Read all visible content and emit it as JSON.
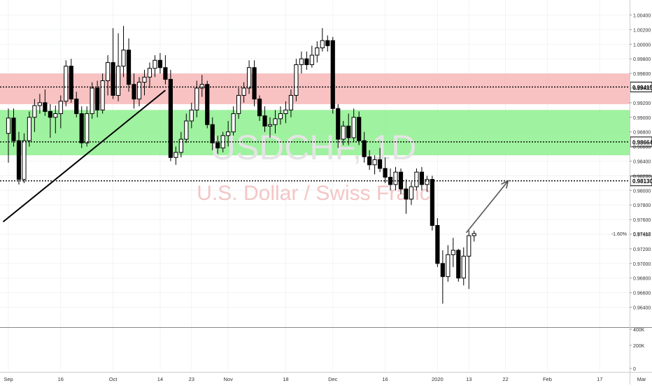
{
  "chart_data": {
    "type": "candlestick",
    "symbol": "USDCHF, 1D",
    "description": "U.S. Dollar / Swiss Franc",
    "y_axis": {
      "min": 0.963,
      "max": 1.005,
      "ticks": [
        "1.00400",
        "1.00200",
        "1.00000",
        "0.99800",
        "0.99600",
        "0.99400",
        "0.99200",
        "0.99000",
        "0.98800",
        "0.98600",
        "0.98400",
        "0.98200",
        "0.98000",
        "0.97800",
        "0.97600",
        "0.97400",
        "0.97200",
        "0.97000",
        "0.96800",
        "0.96600",
        "0.96400"
      ]
    },
    "x_axis": {
      "ticks": [
        {
          "label": "Sep",
          "bar": 0
        },
        {
          "label": "16",
          "bar": 10
        },
        {
          "label": "Oct",
          "bar": 20
        },
        {
          "label": "14",
          "bar": 29
        },
        {
          "label": "23",
          "bar": 35
        },
        {
          "label": "Nov",
          "bar": 42
        },
        {
          "label": "18",
          "bar": 53
        },
        {
          "label": "Dec",
          "bar": 62
        },
        {
          "label": "16",
          "bar": 72
        },
        {
          "label": "2020",
          "bar": 82
        },
        {
          "label": "13",
          "bar": 88
        },
        {
          "label": "22",
          "bar": 95
        },
        {
          "label": "Feb",
          "bar": 103
        },
        {
          "label": "17",
          "bar": 113
        },
        {
          "label": "Mar",
          "bar": 121
        }
      ]
    },
    "volume_axis": {
      "ticks": [
        "400K",
        "200K",
        "0"
      ]
    },
    "zones": [
      {
        "name": "resistance",
        "from": 0.9918,
        "to": 0.996,
        "color": "#f7b7b7"
      },
      {
        "name": "support",
        "from": 0.9848,
        "to": 0.991,
        "color": "#8ef08e"
      }
    ],
    "levels": [
      {
        "value": 0.99415,
        "label": "0.99415"
      },
      {
        "value": 0.98664,
        "label": "0.98664"
      },
      {
        "value": 0.9813,
        "label": "0.98130"
      }
    ],
    "current_price": {
      "value": 0.97412,
      "label": "0.97412",
      "change": "-1.60%"
    },
    "trendline": {
      "from": {
        "bar": -1,
        "price": 0.9757
      },
      "to": {
        "bar": 30,
        "price": 0.9937
      }
    },
    "projection_arrow": {
      "from": {
        "bar": 87.5,
        "price": 0.9742
      },
      "to": {
        "bar": 95.5,
        "price": 0.9813
      }
    },
    "candles": [
      {
        "o": 0.9878,
        "h": 0.9912,
        "l": 0.9838,
        "c": 0.9899
      },
      {
        "o": 0.9899,
        "h": 0.9912,
        "l": 0.986,
        "c": 0.9868
      },
      {
        "o": 0.9868,
        "h": 0.988,
        "l": 0.9808,
        "c": 0.9815
      },
      {
        "o": 0.9815,
        "h": 0.9878,
        "l": 0.981,
        "c": 0.9868
      },
      {
        "o": 0.9868,
        "h": 0.9908,
        "l": 0.986,
        "c": 0.99
      },
      {
        "o": 0.99,
        "h": 0.9925,
        "l": 0.988,
        "c": 0.9916
      },
      {
        "o": 0.9916,
        "h": 0.9932,
        "l": 0.9905,
        "c": 0.992
      },
      {
        "o": 0.992,
        "h": 0.9938,
        "l": 0.9902,
        "c": 0.9908
      },
      {
        "o": 0.9908,
        "h": 0.9918,
        "l": 0.9872,
        "c": 0.99
      },
      {
        "o": 0.99,
        "h": 0.9916,
        "l": 0.9878,
        "c": 0.9905
      },
      {
        "o": 0.9905,
        "h": 0.993,
        "l": 0.9885,
        "c": 0.9922
      },
      {
        "o": 0.9922,
        "h": 0.9978,
        "l": 0.9915,
        "c": 0.997
      },
      {
        "o": 0.997,
        "h": 0.998,
        "l": 0.992,
        "c": 0.9925
      },
      {
        "o": 0.9925,
        "h": 0.9935,
        "l": 0.99,
        "c": 0.9905
      },
      {
        "o": 0.9905,
        "h": 0.9915,
        "l": 0.9858,
        "c": 0.9865
      },
      {
        "o": 0.9865,
        "h": 0.9915,
        "l": 0.986,
        "c": 0.9905
      },
      {
        "o": 0.9905,
        "h": 0.9948,
        "l": 0.9898,
        "c": 0.994
      },
      {
        "o": 0.994,
        "h": 0.995,
        "l": 0.99,
        "c": 0.991
      },
      {
        "o": 0.991,
        "h": 0.996,
        "l": 0.9905,
        "c": 0.995
      },
      {
        "o": 0.995,
        "h": 0.9985,
        "l": 0.993,
        "c": 0.9975
      },
      {
        "o": 0.9975,
        "h": 1.0022,
        "l": 0.9925,
        "c": 0.993
      },
      {
        "o": 0.993,
        "h": 1.0015,
        "l": 0.9922,
        "c": 0.997
      },
      {
        "o": 0.997,
        "h": 1.0025,
        "l": 0.9955,
        "c": 0.9992
      },
      {
        "o": 0.9992,
        "h": 1.0008,
        "l": 0.9935,
        "c": 0.9945
      },
      {
        "o": 0.9945,
        "h": 0.996,
        "l": 0.9912,
        "c": 0.9925
      },
      {
        "o": 0.9925,
        "h": 0.9955,
        "l": 0.9915,
        "c": 0.9948
      },
      {
        "o": 0.9948,
        "h": 0.9965,
        "l": 0.993,
        "c": 0.9955
      },
      {
        "o": 0.9955,
        "h": 0.9975,
        "l": 0.994,
        "c": 0.9967
      },
      {
        "o": 0.9967,
        "h": 0.9985,
        "l": 0.9955,
        "c": 0.9978
      },
      {
        "o": 0.9978,
        "h": 0.9988,
        "l": 0.996,
        "c": 0.9968
      },
      {
        "o": 0.9968,
        "h": 0.9985,
        "l": 0.9945,
        "c": 0.9952
      },
      {
        "o": 0.9952,
        "h": 0.9965,
        "l": 0.984,
        "c": 0.9845
      },
      {
        "o": 0.9845,
        "h": 0.986,
        "l": 0.9835,
        "c": 0.9852
      },
      {
        "o": 0.9852,
        "h": 0.988,
        "l": 0.9845,
        "c": 0.987
      },
      {
        "o": 0.987,
        "h": 0.9905,
        "l": 0.9865,
        "c": 0.9895
      },
      {
        "o": 0.9895,
        "h": 0.992,
        "l": 0.9885,
        "c": 0.991
      },
      {
        "o": 0.991,
        "h": 0.995,
        "l": 0.99,
        "c": 0.994
      },
      {
        "o": 0.994,
        "h": 0.9958,
        "l": 0.9928,
        "c": 0.9945
      },
      {
        "o": 0.9945,
        "h": 0.995,
        "l": 0.9885,
        "c": 0.989
      },
      {
        "o": 0.989,
        "h": 0.99,
        "l": 0.9855,
        "c": 0.9865
      },
      {
        "o": 0.9865,
        "h": 0.9875,
        "l": 0.985,
        "c": 0.9858
      },
      {
        "o": 0.9858,
        "h": 0.988,
        "l": 0.9852,
        "c": 0.9875
      },
      {
        "o": 0.9875,
        "h": 0.9895,
        "l": 0.986,
        "c": 0.988
      },
      {
        "o": 0.988,
        "h": 0.9915,
        "l": 0.9875,
        "c": 0.9905
      },
      {
        "o": 0.9905,
        "h": 0.994,
        "l": 0.9898,
        "c": 0.993
      },
      {
        "o": 0.993,
        "h": 0.9948,
        "l": 0.992,
        "c": 0.994
      },
      {
        "o": 0.994,
        "h": 0.9978,
        "l": 0.9932,
        "c": 0.9968
      },
      {
        "o": 0.9968,
        "h": 0.9978,
        "l": 0.9915,
        "c": 0.9925
      },
      {
        "o": 0.9925,
        "h": 0.993,
        "l": 0.9895,
        "c": 0.9902
      },
      {
        "o": 0.9902,
        "h": 0.9915,
        "l": 0.988,
        "c": 0.9888
      },
      {
        "o": 0.9888,
        "h": 0.99,
        "l": 0.9872,
        "c": 0.989
      },
      {
        "o": 0.989,
        "h": 0.991,
        "l": 0.9878,
        "c": 0.9898
      },
      {
        "o": 0.9898,
        "h": 0.9915,
        "l": 0.989,
        "c": 0.9905
      },
      {
        "o": 0.9905,
        "h": 0.9922,
        "l": 0.9892,
        "c": 0.991
      },
      {
        "o": 0.991,
        "h": 0.9938,
        "l": 0.99,
        "c": 0.993
      },
      {
        "o": 0.993,
        "h": 0.998,
        "l": 0.9922,
        "c": 0.9972
      },
      {
        "o": 0.9972,
        "h": 0.999,
        "l": 0.996,
        "c": 0.998
      },
      {
        "o": 0.998,
        "h": 0.999,
        "l": 0.9965,
        "c": 0.9972
      },
      {
        "o": 0.9972,
        "h": 0.9998,
        "l": 0.9968,
        "c": 0.9985
      },
      {
        "o": 0.9985,
        "h": 1.0004,
        "l": 0.9975,
        "c": 0.9995
      },
      {
        "o": 0.9995,
        "h": 1.0022,
        "l": 0.999,
        "c": 1.0005
      },
      {
        "o": 1.0005,
        "h": 1.0012,
        "l": 0.999,
        "c": 0.9998
      },
      {
        "o": 1.0005,
        "h": 1.001,
        "l": 0.9905,
        "c": 0.9912
      },
      {
        "o": 0.9912,
        "h": 0.9918,
        "l": 0.9858,
        "c": 0.987
      },
      {
        "o": 0.987,
        "h": 0.9895,
        "l": 0.9862,
        "c": 0.9888
      },
      {
        "o": 0.9888,
        "h": 0.9905,
        "l": 0.9862,
        "c": 0.9872
      },
      {
        "o": 0.9872,
        "h": 0.9912,
        "l": 0.9866,
        "c": 0.99
      },
      {
        "o": 0.99,
        "h": 0.9908,
        "l": 0.9862,
        "c": 0.9868
      },
      {
        "o": 0.9868,
        "h": 0.988,
        "l": 0.9838,
        "c": 0.9846
      },
      {
        "o": 0.9846,
        "h": 0.9855,
        "l": 0.9828,
        "c": 0.9835
      },
      {
        "o": 0.9835,
        "h": 0.9848,
        "l": 0.9822,
        "c": 0.9842
      },
      {
        "o": 0.9842,
        "h": 0.9858,
        "l": 0.9825,
        "c": 0.983
      },
      {
        "o": 0.983,
        "h": 0.9845,
        "l": 0.981,
        "c": 0.9818
      },
      {
        "o": 0.9818,
        "h": 0.983,
        "l": 0.98,
        "c": 0.9808
      },
      {
        "o": 0.9808,
        "h": 0.9832,
        "l": 0.98,
        "c": 0.9825
      },
      {
        "o": 0.9825,
        "h": 0.983,
        "l": 0.9795,
        "c": 0.9802
      },
      {
        "o": 0.9802,
        "h": 0.9815,
        "l": 0.9768,
        "c": 0.9788
      },
      {
        "o": 0.9788,
        "h": 0.9812,
        "l": 0.978,
        "c": 0.9805
      },
      {
        "o": 0.9805,
        "h": 0.983,
        "l": 0.98,
        "c": 0.9825
      },
      {
        "o": 0.9825,
        "h": 0.9832,
        "l": 0.98,
        "c": 0.9808
      },
      {
        "o": 0.9808,
        "h": 0.982,
        "l": 0.9798,
        "c": 0.9815
      },
      {
        "o": 0.9815,
        "h": 0.982,
        "l": 0.9745,
        "c": 0.9752
      },
      {
        "o": 0.9752,
        "h": 0.9762,
        "l": 0.9695,
        "c": 0.97
      },
      {
        "o": 0.97,
        "h": 0.9718,
        "l": 0.9645,
        "c": 0.9682
      },
      {
        "o": 0.9682,
        "h": 0.9725,
        "l": 0.9675,
        "c": 0.9712
      },
      {
        "o": 0.9712,
        "h": 0.9735,
        "l": 0.9695,
        "c": 0.9718
      },
      {
        "o": 0.9718,
        "h": 0.972,
        "l": 0.9675,
        "c": 0.968
      },
      {
        "o": 0.968,
        "h": 0.9722,
        "l": 0.967,
        "c": 0.971
      },
      {
        "o": 0.971,
        "h": 0.9745,
        "l": 0.9665,
        "c": 0.9738
      },
      {
        "o": 0.9738,
        "h": 0.9745,
        "l": 0.973,
        "c": 0.9741
      }
    ]
  }
}
